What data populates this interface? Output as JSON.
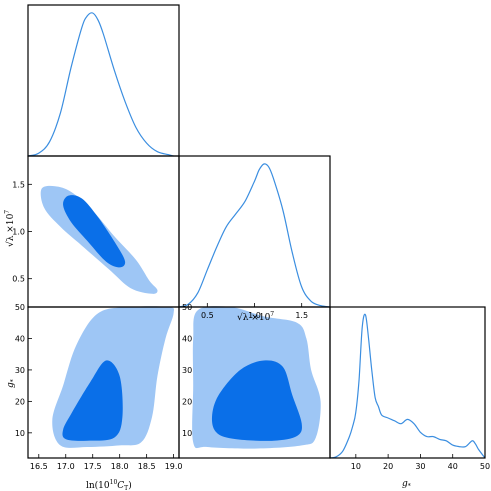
{
  "colors": {
    "line": "#3b8ee0",
    "outer": "#9ec6f5",
    "inner": "#0a6fe8"
  },
  "parameters": [
    {
      "key": "c",
      "label": "ln(10¹⁰ C_T)",
      "label_x": "ln(10",
      "label_sup": "10",
      "label_rest": " C",
      "label_sub": "T",
      "label_end": ")",
      "range": [
        16.3,
        19.1
      ],
      "ticks": [
        16.5,
        17.0,
        17.5,
        18.0,
        18.5,
        19.0
      ],
      "tick_labels": [
        "16.5",
        "17.0",
        "17.5",
        "18.0",
        "18.5",
        "19.0"
      ]
    },
    {
      "key": "l",
      "label": "√λ ×10⁷",
      "range": [
        0.2,
        1.8
      ],
      "ticks": [
        0.5,
        1.0,
        1.5
      ],
      "tick_labels": [
        "0.5",
        "1.0",
        "1.5"
      ]
    },
    {
      "key": "g",
      "label": "g*",
      "range": [
        2,
        50
      ],
      "ticks": [
        10,
        20,
        30,
        40,
        50
      ],
      "tick_labels": [
        "10",
        "20",
        "30",
        "40",
        "50"
      ]
    }
  ],
  "axis_labels": {
    "c": "ln(10",
    "c_sup": "10",
    "c_tail": "C",
    "c_sub": "T",
    "c_close": ")",
    "l_y": "√λ ×10",
    "l_y_sup": "7",
    "l_x": "√λ ×10",
    "l_x_sup": "7",
    "g_y": "g",
    "g_y_sub": "*",
    "g_x": "g",
    "g_x_sub": "*"
  },
  "chart_data": [
    {
      "type": "line",
      "panel": "diag-c",
      "x": [
        16.3,
        16.5,
        16.7,
        16.9,
        17.1,
        17.3,
        17.4,
        17.5,
        17.6,
        17.7,
        17.9,
        18.1,
        18.3,
        18.5,
        18.7,
        18.9,
        19.0
      ],
      "y": [
        0.0,
        0.02,
        0.1,
        0.3,
        0.62,
        0.9,
        0.98,
        1.0,
        0.95,
        0.85,
        0.6,
        0.38,
        0.2,
        0.09,
        0.03,
        0.01,
        0.0
      ]
    },
    {
      "type": "line",
      "panel": "diag-l",
      "x": [
        0.2,
        0.3,
        0.4,
        0.5,
        0.6,
        0.7,
        0.8,
        0.9,
        1.0,
        1.05,
        1.1,
        1.15,
        1.2,
        1.3,
        1.4,
        1.5,
        1.6,
        1.7,
        1.8
      ],
      "y": [
        0.0,
        0.02,
        0.1,
        0.26,
        0.42,
        0.56,
        0.65,
        0.74,
        0.88,
        0.96,
        1.0,
        0.98,
        0.9,
        0.68,
        0.38,
        0.14,
        0.04,
        0.01,
        0.0
      ]
    },
    {
      "type": "line",
      "panel": "diag-g",
      "x": [
        2,
        4,
        6,
        8,
        9,
        10,
        11,
        12,
        13,
        14,
        15,
        16,
        17,
        18,
        20,
        22,
        24,
        26,
        28,
        30,
        32,
        34,
        36,
        38,
        40,
        42,
        44,
        46,
        47,
        48,
        50
      ],
      "y": [
        0.0,
        0.01,
        0.05,
        0.15,
        0.22,
        0.32,
        0.55,
        0.92,
        1.0,
        0.82,
        0.6,
        0.42,
        0.36,
        0.3,
        0.28,
        0.26,
        0.24,
        0.27,
        0.24,
        0.18,
        0.15,
        0.15,
        0.13,
        0.12,
        0.09,
        0.08,
        0.08,
        0.12,
        0.1,
        0.06,
        0.0
      ]
    },
    {
      "type": "area",
      "panel": "c-vs-l",
      "contours": [
        {
          "level": "95%",
          "points": [
            [
              16.55,
              1.45
            ],
            [
              16.8,
              1.48
            ],
            [
              17.1,
              1.42
            ],
            [
              17.5,
              1.22
            ],
            [
              17.9,
              0.95
            ],
            [
              18.3,
              0.7
            ],
            [
              18.55,
              0.48
            ],
            [
              18.7,
              0.38
            ],
            [
              18.6,
              0.34
            ],
            [
              18.2,
              0.4
            ],
            [
              17.8,
              0.6
            ],
            [
              17.3,
              0.85
            ],
            [
              16.9,
              1.05
            ],
            [
              16.6,
              1.25
            ]
          ]
        },
        {
          "level": "68%",
          "points": [
            [
              17.05,
              1.38
            ],
            [
              17.3,
              1.35
            ],
            [
              17.6,
              1.15
            ],
            [
              17.95,
              0.85
            ],
            [
              18.1,
              0.68
            ],
            [
              18.0,
              0.62
            ],
            [
              17.75,
              0.68
            ],
            [
              17.4,
              0.9
            ],
            [
              17.1,
              1.1
            ],
            [
              16.95,
              1.28
            ]
          ]
        }
      ]
    },
    {
      "type": "area",
      "panel": "c-vs-g",
      "contours": [
        {
          "level": "95%",
          "points": [
            [
              16.9,
              6
            ],
            [
              17.4,
              5.5
            ],
            [
              18.0,
              6
            ],
            [
              18.4,
              7
            ],
            [
              18.6,
              15
            ],
            [
              18.7,
              28
            ],
            [
              18.85,
              40
            ],
            [
              19.0,
              48
            ],
            [
              18.9,
              50
            ],
            [
              18.2,
              50
            ],
            [
              17.6,
              48
            ],
            [
              17.2,
              38
            ],
            [
              16.95,
              25
            ],
            [
              16.75,
              14
            ]
          ]
        },
        {
          "level": "68%",
          "points": [
            [
              17.0,
              8
            ],
            [
              17.4,
              7.5
            ],
            [
              17.9,
              8.5
            ],
            [
              18.05,
              15
            ],
            [
              18.0,
              28
            ],
            [
              17.75,
              33
            ],
            [
              17.45,
              26
            ],
            [
              17.1,
              16
            ],
            [
              16.95,
              11
            ]
          ]
        }
      ]
    },
    {
      "type": "area",
      "panel": "l-vs-g",
      "contours": [
        {
          "level": "95%",
          "points": [
            [
              0.35,
              7
            ],
            [
              0.5,
              5.5
            ],
            [
              1.0,
              5
            ],
            [
              1.5,
              6
            ],
            [
              1.65,
              8.5
            ],
            [
              1.7,
              20
            ],
            [
              1.6,
              30
            ],
            [
              1.55,
              40
            ],
            [
              1.45,
              45
            ],
            [
              1.1,
              47
            ],
            [
              0.75,
              50
            ],
            [
              0.4,
              49
            ],
            [
              0.35,
              40
            ],
            [
              0.35,
              25
            ]
          ]
        },
        {
          "level": "68%",
          "points": [
            [
              0.6,
              10
            ],
            [
              0.8,
              8
            ],
            [
              1.2,
              7.5
            ],
            [
              1.45,
              9
            ],
            [
              1.5,
              13
            ],
            [
              1.4,
              22
            ],
            [
              1.3,
              31
            ],
            [
              1.1,
              33
            ],
            [
              0.85,
              30
            ],
            [
              0.62,
              22
            ],
            [
              0.55,
              15
            ]
          ]
        }
      ]
    }
  ]
}
